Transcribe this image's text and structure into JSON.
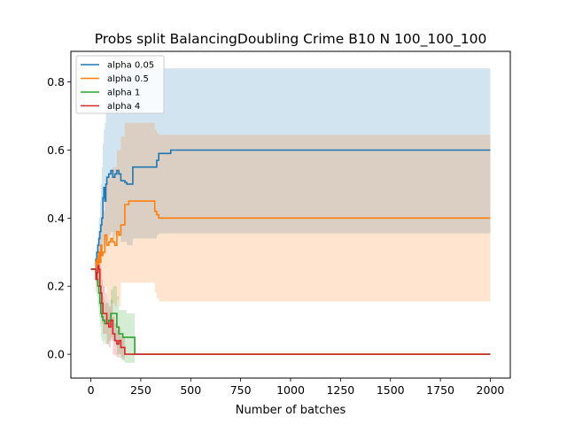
{
  "chart_data": {
    "type": "line",
    "title": "Probs split BalancingDoubling Crime B10 N 100_100_100",
    "xlabel": "Number of batches",
    "ylabel": "",
    "xlim": [
      -100,
      2100
    ],
    "ylim": [
      -0.07,
      0.89
    ],
    "xticks": [
      0,
      250,
      500,
      750,
      1000,
      1250,
      1500,
      1750,
      2000
    ],
    "yticks": [
      0.0,
      0.2,
      0.4,
      0.6,
      0.8
    ],
    "xtick_labels": [
      "0",
      "250",
      "500",
      "750",
      "1000",
      "1250",
      "1500",
      "1750",
      "2000"
    ],
    "ytick_labels": [
      "0.0",
      "0.2",
      "0.4",
      "0.6",
      "0.8"
    ],
    "grid": false,
    "legend": "top-left",
    "series": [
      {
        "name": "alpha 0.05",
        "color": "#1f77b4",
        "x": [
          0,
          20,
          25,
          30,
          35,
          40,
          45,
          50,
          55,
          60,
          65,
          70,
          75,
          80,
          90,
          100,
          110,
          120,
          130,
          140,
          150,
          160,
          170,
          180,
          200,
          210,
          220,
          250,
          290,
          300,
          310,
          320,
          330,
          340,
          400,
          450,
          500,
          2000
        ],
        "y": [
          0.25,
          0.25,
          0.28,
          0.3,
          0.32,
          0.34,
          0.36,
          0.38,
          0.4,
          0.46,
          0.49,
          0.45,
          0.5,
          0.52,
          0.53,
          0.54,
          0.52,
          0.53,
          0.54,
          0.53,
          0.51,
          0.51,
          0.505,
          0.5,
          0.5,
          0.55,
          0.55,
          0.55,
          0.55,
          0.55,
          0.55,
          0.55,
          0.57,
          0.59,
          0.6,
          0.6,
          0.6,
          0.6
        ],
        "upper": [
          0.25,
          0.25,
          0.3,
          0.33,
          0.36,
          0.4,
          0.45,
          0.5,
          0.55,
          0.62,
          0.66,
          0.68,
          0.76,
          0.84,
          0.84,
          0.84,
          0.84,
          0.84,
          0.84,
          0.84,
          0.84,
          0.84,
          0.84,
          0.84,
          0.84,
          0.84,
          0.84,
          0.84,
          0.84,
          0.84,
          0.84,
          0.84,
          0.84,
          0.84,
          0.84,
          0.84,
          0.84,
          0.84
        ],
        "lower": [
          0.25,
          0.25,
          0.25,
          0.26,
          0.27,
          0.28,
          0.29,
          0.3,
          0.31,
          0.32,
          0.33,
          0.32,
          0.33,
          0.34,
          0.35,
          0.36,
          0.34,
          0.35,
          0.36,
          0.35,
          0.33,
          0.33,
          0.33,
          0.32,
          0.32,
          0.34,
          0.34,
          0.34,
          0.34,
          0.34,
          0.34,
          0.34,
          0.35,
          0.355,
          0.355,
          0.355,
          0.355,
          0.355
        ]
      },
      {
        "name": "alpha 0.5",
        "color": "#ff7f0e",
        "x": [
          0,
          20,
          25,
          30,
          35,
          40,
          45,
          50,
          55,
          60,
          70,
          80,
          90,
          100,
          110,
          120,
          130,
          140,
          150,
          160,
          170,
          180,
          190,
          200,
          220,
          250,
          280,
          310,
          320,
          330,
          340,
          400,
          500,
          2000
        ],
        "y": [
          0.25,
          0.25,
          0.27,
          0.28,
          0.26,
          0.3,
          0.27,
          0.32,
          0.29,
          0.3,
          0.35,
          0.32,
          0.33,
          0.34,
          0.33,
          0.32,
          0.36,
          0.35,
          0.38,
          0.38,
          0.44,
          0.44,
          0.45,
          0.45,
          0.45,
          0.45,
          0.45,
          0.45,
          0.42,
          0.41,
          0.4,
          0.4,
          0.4,
          0.4
        ],
        "upper": [
          0.25,
          0.25,
          0.28,
          0.3,
          0.3,
          0.34,
          0.35,
          0.38,
          0.4,
          0.42,
          0.5,
          0.52,
          0.52,
          0.54,
          0.55,
          0.55,
          0.6,
          0.6,
          0.64,
          0.64,
          0.68,
          0.68,
          0.68,
          0.68,
          0.68,
          0.68,
          0.68,
          0.68,
          0.66,
          0.65,
          0.645,
          0.645,
          0.645,
          0.645
        ],
        "lower": [
          0.25,
          0.25,
          0.25,
          0.24,
          0.22,
          0.24,
          0.2,
          0.22,
          0.2,
          0.18,
          0.2,
          0.16,
          0.16,
          0.15,
          0.15,
          0.14,
          0.16,
          0.14,
          0.21,
          0.21,
          0.21,
          0.21,
          0.21,
          0.21,
          0.21,
          0.21,
          0.21,
          0.21,
          0.18,
          0.165,
          0.155,
          0.155,
          0.155,
          0.155
        ]
      },
      {
        "name": "alpha 1",
        "color": "#2ca02c",
        "x": [
          0,
          20,
          25,
          30,
          35,
          40,
          45,
          50,
          55,
          60,
          65,
          70,
          80,
          90,
          100,
          110,
          120,
          130,
          140,
          150,
          160,
          170,
          180,
          190,
          200,
          210,
          220,
          230,
          2000
        ],
        "y": [
          0.25,
          0.25,
          0.24,
          0.22,
          0.2,
          0.18,
          0.15,
          0.12,
          0.11,
          0.1,
          0.1,
          0.09,
          0.09,
          0.1,
          0.12,
          0.12,
          0.12,
          0.08,
          0.06,
          0.06,
          0.05,
          0.05,
          0.05,
          0.05,
          0.05,
          0.05,
          0.0,
          0.0,
          0.0
        ],
        "upper": [
          0.25,
          0.25,
          0.27,
          0.27,
          0.26,
          0.25,
          0.22,
          0.2,
          0.18,
          0.17,
          0.16,
          0.15,
          0.15,
          0.16,
          0.19,
          0.2,
          0.2,
          0.17,
          0.13,
          0.13,
          0.13,
          0.13,
          0.12,
          0.12,
          0.12,
          0.12,
          0.0,
          0.0,
          0.0
        ],
        "lower": [
          0.25,
          0.25,
          0.21,
          0.17,
          0.14,
          0.11,
          0.08,
          0.05,
          0.04,
          0.03,
          0.04,
          0.03,
          0.03,
          0.04,
          0.05,
          0.04,
          0.04,
          0.0,
          -0.01,
          -0.015,
          -0.02,
          -0.025,
          -0.025,
          -0.025,
          -0.025,
          -0.025,
          0.0,
          0.0,
          0.0
        ]
      },
      {
        "name": "alpha 4",
        "color": "#d62728",
        "x": [
          0,
          20,
          25,
          30,
          35,
          40,
          45,
          50,
          55,
          60,
          70,
          80,
          90,
          100,
          110,
          120,
          130,
          140,
          150,
          160,
          170,
          180,
          2000
        ],
        "y": [
          0.25,
          0.25,
          0.22,
          0.24,
          0.26,
          0.25,
          0.2,
          0.18,
          0.15,
          0.12,
          0.12,
          0.09,
          0.08,
          0.1,
          0.06,
          0.04,
          0.03,
          0.04,
          0.02,
          0.02,
          0.0,
          0.0,
          0.0
        ],
        "upper": [
          0.25,
          0.25,
          0.26,
          0.28,
          0.31,
          0.29,
          0.27,
          0.25,
          0.22,
          0.2,
          0.18,
          0.16,
          0.14,
          0.16,
          0.11,
          0.09,
          0.07,
          0.08,
          0.05,
          0.05,
          0.0,
          0.0,
          0.0
        ],
        "lower": [
          0.25,
          0.25,
          0.18,
          0.2,
          0.21,
          0.2,
          0.14,
          0.11,
          0.09,
          0.06,
          0.06,
          0.03,
          0.02,
          0.04,
          0.0,
          -0.005,
          -0.01,
          0.0,
          -0.01,
          -0.015,
          0.0,
          0.0,
          0.0
        ]
      }
    ]
  }
}
